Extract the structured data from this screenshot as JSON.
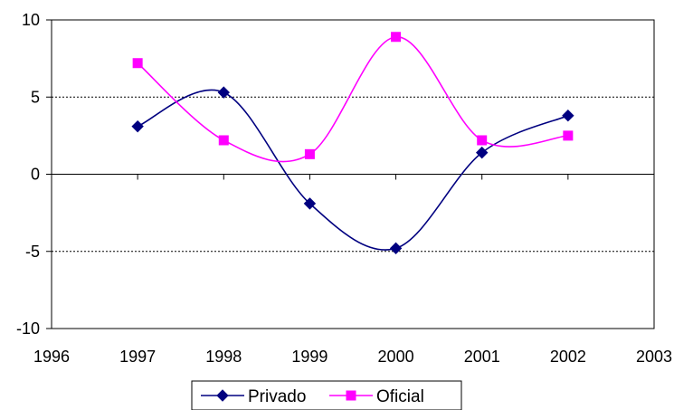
{
  "chart_data": {
    "type": "line",
    "xlim": [
      1996,
      2003
    ],
    "ylim": [
      -10,
      10
    ],
    "x_ticks": [
      "1996",
      "1997",
      "1998",
      "1999",
      "2000",
      "2001",
      "2002",
      "2003"
    ],
    "y_ticks": [
      "10",
      "5",
      "0",
      "-5",
      "-10"
    ],
    "gridlines_y": [
      5,
      -5
    ],
    "smoothed": true,
    "legend_position": "bottom",
    "series": [
      {
        "name": "Privado",
        "color": "#000080",
        "marker": "diamond",
        "x": [
          1997,
          1998,
          1999,
          2000,
          2001,
          2002
        ],
        "y": [
          3.1,
          5.3,
          -1.9,
          -4.8,
          1.4,
          3.8
        ]
      },
      {
        "name": "Oficial",
        "color": "#FF00FF",
        "marker": "square",
        "x": [
          1997,
          1998,
          1999,
          2000,
          2001,
          2002
        ],
        "y": [
          7.2,
          2.2,
          1.3,
          8.9,
          2.2,
          2.5
        ]
      }
    ]
  }
}
